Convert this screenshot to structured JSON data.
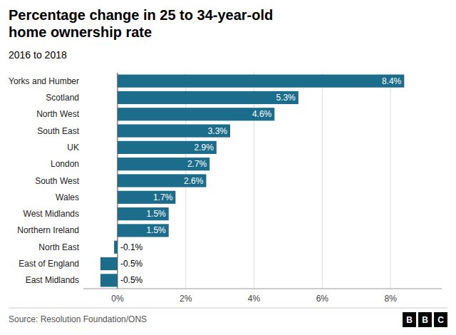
{
  "chart_data": {
    "type": "bar",
    "orientation": "horizontal",
    "title": "Percentage change in 25 to 34-year-old\nhome ownership rate",
    "subtitle": "2016 to 2018",
    "source": "Source: Resolution Foundation/ONS",
    "annotations": [
      "BBC"
    ],
    "categories": [
      "East Midlands",
      "East of England",
      "North East",
      "Northern Ireland",
      "West Midlands",
      "Wales",
      "South West",
      "London",
      "UK",
      "South East",
      "North West",
      "Scotland",
      "Yorks and Humber"
    ],
    "values": [
      -0.5,
      -0.5,
      -0.1,
      1.5,
      1.5,
      1.7,
      2.6,
      2.7,
      2.9,
      3.3,
      4.6,
      5.3,
      8.4
    ],
    "value_labels": [
      "-0.5%",
      "-0.5%",
      "-0.1%",
      "1.5%",
      "1.5%",
      "1.7%",
      "2.6%",
      "2.7%",
      "2.9%",
      "3.3%",
      "4.6%",
      "5.3%",
      "8.4%"
    ],
    "data_labels": true,
    "color": "#1c6d8c",
    "xlim": [
      -1.0,
      9.5
    ],
    "xticks": [
      {
        "value": 0,
        "label": "0%"
      },
      {
        "value": 2,
        "label": "2%"
      },
      {
        "value": 4,
        "label": "4%"
      },
      {
        "value": 6,
        "label": "6%"
      },
      {
        "value": 8,
        "label": "8%"
      }
    ],
    "grid": true
  }
}
